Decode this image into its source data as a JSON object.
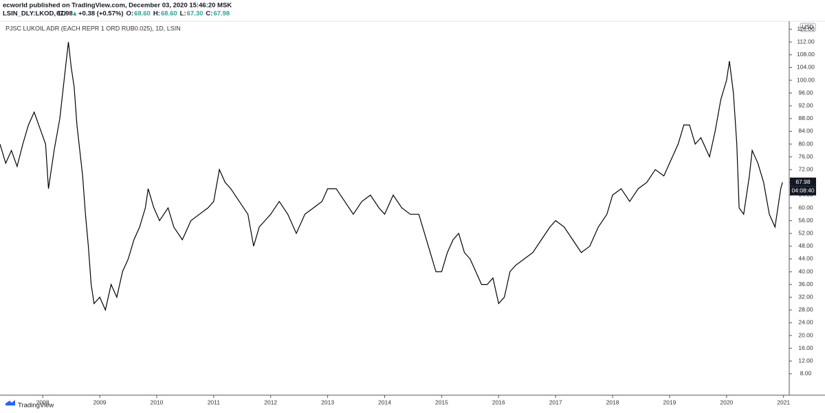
{
  "header": {
    "publisher_line": "ecworld published on TradingView.com, December 03, 2020 15:46:20 MSK",
    "symbol": "LSIN_DLY:LKOD, 1D",
    "last": "67.98",
    "arrow": "▲",
    "change": "+0.38 (+0.57%)",
    "ohlc": [
      {
        "label": "O:",
        "value": "68.60"
      },
      {
        "label": "H:",
        "value": "68.60"
      },
      {
        "label": "L:",
        "value": "67.30"
      },
      {
        "label": "C:",
        "value": "67.98"
      }
    ]
  },
  "chart_data": {
    "type": "line",
    "title": "PJSC LUKOIL ADR (EACH REPR 1 ORD RUB0.025), 1D, LSIN",
    "currency": "USD",
    "price_label": "67.98",
    "countdown": "04:08:40",
    "color": "#000000",
    "x": [
      2007.25,
      2007.35,
      2007.45,
      2007.55,
      2007.65,
      2007.75,
      2007.85,
      2007.95,
      2008.05,
      2008.1,
      2008.2,
      2008.3,
      2008.4,
      2008.45,
      2008.5,
      2008.55,
      2008.6,
      2008.7,
      2008.75,
      2008.8,
      2008.85,
      2008.9,
      2009.0,
      2009.1,
      2009.2,
      2009.3,
      2009.4,
      2009.5,
      2009.6,
      2009.7,
      2009.8,
      2009.85,
      2009.95,
      2010.05,
      2010.2,
      2010.3,
      2010.45,
      2010.6,
      2010.75,
      2010.9,
      2011.0,
      2011.1,
      2011.2,
      2011.3,
      2011.45,
      2011.6,
      2011.7,
      2011.8,
      2011.9,
      2012.0,
      2012.15,
      2012.3,
      2012.45,
      2012.6,
      2012.75,
      2012.9,
      2013.0,
      2013.15,
      2013.3,
      2013.45,
      2013.6,
      2013.75,
      2013.9,
      2014.0,
      2014.15,
      2014.3,
      2014.45,
      2014.6,
      2014.7,
      2014.8,
      2014.9,
      2015.0,
      2015.1,
      2015.2,
      2015.3,
      2015.4,
      2015.5,
      2015.6,
      2015.7,
      2015.8,
      2015.9,
      2016.0,
      2016.1,
      2016.2,
      2016.3,
      2016.45,
      2016.6,
      2016.75,
      2016.9,
      2017.0,
      2017.15,
      2017.3,
      2017.45,
      2017.6,
      2017.75,
      2017.9,
      2018.0,
      2018.15,
      2018.3,
      2018.45,
      2018.6,
      2018.75,
      2018.9,
      2019.0,
      2019.15,
      2019.25,
      2019.35,
      2019.45,
      2019.55,
      2019.7,
      2019.8,
      2019.9,
      2020.0,
      2020.05,
      2020.12,
      2020.18,
      2020.22,
      2020.3,
      2020.4,
      2020.45,
      2020.55,
      2020.65,
      2020.75,
      2020.85,
      2020.95,
      2020.98
    ],
    "values": [
      80,
      74,
      78,
      73,
      80,
      86,
      90,
      85,
      80,
      66,
      78,
      88,
      104,
      112,
      104,
      98,
      86,
      70,
      58,
      48,
      36,
      30,
      32,
      28,
      36,
      32,
      40,
      44,
      50,
      54,
      60,
      66,
      60,
      56,
      60,
      54,
      50,
      56,
      58,
      60,
      62,
      72,
      68,
      66,
      62,
      58,
      48,
      54,
      56,
      58,
      62,
      58,
      52,
      58,
      60,
      62,
      66,
      66,
      62,
      58,
      62,
      64,
      60,
      58,
      64,
      60,
      58,
      58,
      52,
      46,
      40,
      40,
      46,
      50,
      52,
      46,
      44,
      40,
      36,
      36,
      38,
      30,
      32,
      40,
      42,
      44,
      46,
      50,
      54,
      56,
      54,
      50,
      46,
      48,
      54,
      58,
      64,
      66,
      62,
      66,
      68,
      72,
      70,
      74,
      80,
      86,
      86,
      80,
      82,
      76,
      84,
      94,
      100,
      106,
      96,
      80,
      60,
      58,
      70,
      78,
      74,
      68,
      58,
      54,
      66,
      68
    ],
    "xlim": [
      2007.25,
      2021.1
    ],
    "xticks": [
      2008,
      2009,
      2010,
      2011,
      2012,
      2013,
      2014,
      2015,
      2016,
      2017,
      2018,
      2019,
      2020,
      2021
    ],
    "ylim": [
      1.3,
      118.5
    ],
    "yticks": [
      {
        "value": 8,
        "label": "8.00"
      },
      {
        "value": 12,
        "label": "12.00"
      },
      {
        "value": 16,
        "label": "16.00"
      },
      {
        "value": 20,
        "label": "20.00"
      },
      {
        "value": 24,
        "label": "24.00"
      },
      {
        "value": 28,
        "label": "28.00"
      },
      {
        "value": 32,
        "label": "32.00"
      },
      {
        "value": 36,
        "label": "36.00"
      },
      {
        "value": 40,
        "label": "40.00"
      },
      {
        "value": 44,
        "label": "44.00"
      },
      {
        "value": 48,
        "label": "48.00"
      },
      {
        "value": 52,
        "label": "52.00"
      },
      {
        "value": 56,
        "label": "56.00"
      },
      {
        "value": 60,
        "label": "60.00"
      },
      {
        "value": 64,
        "label": "64.00"
      },
      {
        "value": 68,
        "label": "68.00"
      },
      {
        "value": 72,
        "label": "72.00"
      },
      {
        "value": 76,
        "label": "76.00"
      },
      {
        "value": 80,
        "label": "80.00"
      },
      {
        "value": 84,
        "label": "84.00"
      },
      {
        "value": 88,
        "label": "88.00"
      },
      {
        "value": 92,
        "label": "92.00"
      },
      {
        "value": 96,
        "label": "96.00"
      },
      {
        "value": 100,
        "label": "100.00"
      },
      {
        "value": 104,
        "label": "104.00"
      },
      {
        "value": 108,
        "label": "108.00"
      },
      {
        "value": 112,
        "label": "112.00"
      },
      {
        "value": 116,
        "label": "116.00"
      }
    ],
    "grid": false
  },
  "footer": {
    "brand": "TradingView"
  }
}
